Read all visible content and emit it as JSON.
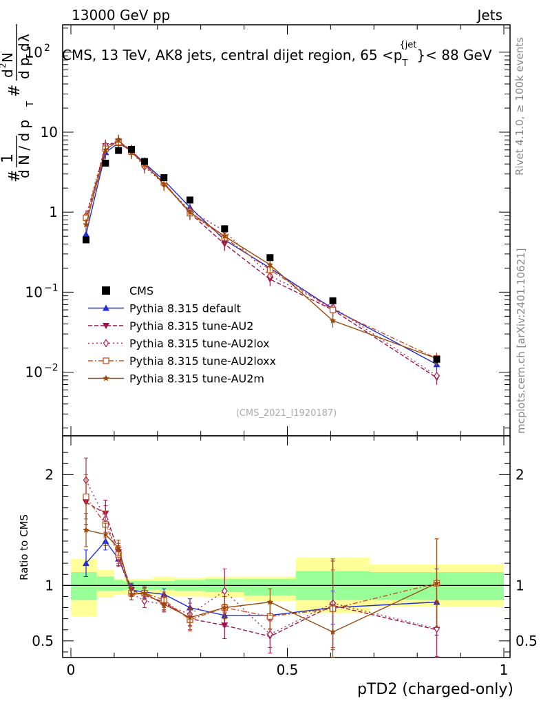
{
  "header": {
    "left": "13000 GeV pp",
    "right": "Jets"
  },
  "side": {
    "rivet": "Rivet 4.1.0, ≥ 100k events",
    "mcplots": "mcplots.cern.ch [arXiv:2401.10621]"
  },
  "chart_data": {
    "type": "scatter",
    "title": "CMS, 13 TeV, AK8 jets, central dijet region, 65 <p_T^{jet}< 88 GeV",
    "title_parts": {
      "main": "CMS, 13 TeV, AK8 jets, central dijet region, 65 <p",
      "sub": "T",
      "sup": "{jet",
      "tail": "}< 88 GeV"
    },
    "analysis_tag": "(CMS_2021_I1920187)",
    "xlabel": "pTD2 (charged-only)",
    "xlim": [
      0,
      1
    ],
    "ylabel_main_parts": {
      "a": "#",
      "b": "1",
      "c": "d N / d p",
      "d": "T",
      "e": "#",
      "f": "d",
      "g": "2",
      "h": "N",
      "i": "d p",
      "j": "T",
      "k": "d",
      "l": "λ"
    },
    "ylim_main": [
      0.0016,
      220
    ],
    "ylabel_ratio": "Ratio to CMS",
    "ylim_ratio": [
      0.35,
      2.35
    ],
    "x_ticks": [
      {
        "v": 0,
        "label": "0"
      },
      {
        "v": 0.5,
        "label": "0.5"
      },
      {
        "v": 1,
        "label": "1"
      }
    ],
    "y_ticks_main": [
      {
        "v": 0.01,
        "label": "10",
        "exp": "−2"
      },
      {
        "v": 0.1,
        "label": "10",
        "exp": "−1"
      },
      {
        "v": 1,
        "label": "1",
        "exp": ""
      },
      {
        "v": 10,
        "label": "10",
        "exp": ""
      },
      {
        "v": 100,
        "label": "10",
        "exp": "2"
      }
    ],
    "y_ticks_ratio": [
      {
        "v": 0.5,
        "label": "0.5"
      },
      {
        "v": 1,
        "label": "1"
      },
      {
        "v": 2,
        "label": "2"
      }
    ],
    "bin_edges": [
      0,
      0.06,
      0.1,
      0.12,
      0.16,
      0.19,
      0.24,
      0.31,
      0.4,
      0.52,
      0.69,
      1.0
    ],
    "x": [
      0.035,
      0.08,
      0.11,
      0.14,
      0.17,
      0.215,
      0.275,
      0.355,
      0.46,
      0.605,
      0.845
    ],
    "cms": {
      "name": "CMS",
      "values": [
        0.45,
        4.1,
        5.9,
        6.1,
        4.3,
        2.7,
        1.42,
        0.62,
        0.27,
        0.078,
        0.0145
      ]
    },
    "ratio_bands": {
      "stat_low": [
        0.87,
        0.95,
        0.95,
        0.96,
        0.96,
        0.96,
        0.95,
        0.94,
        0.91,
        0.87,
        0.87
      ],
      "stat_high": [
        1.12,
        1.08,
        1.05,
        1.04,
        1.04,
        1.04,
        1.05,
        1.06,
        1.06,
        1.13,
        1.12
      ],
      "total_low": [
        0.72,
        0.89,
        0.92,
        0.92,
        0.92,
        0.91,
        0.9,
        0.89,
        0.86,
        0.75,
        0.81
      ],
      "total_high": [
        1.24,
        1.14,
        1.06,
        1.06,
        1.06,
        1.08,
        1.07,
        1.08,
        1.08,
        1.25,
        1.19
      ]
    },
    "series": [
      {
        "name": "Pythia 8.315 default",
        "color": "#1f2ed8",
        "marker": "triangle-up",
        "dash": "",
        "values": [
          0.53,
          5.6,
          7.3,
          5.8,
          4.1,
          2.5,
          1.15,
          0.45,
          0.2,
          0.062,
          0.0125
        ],
        "ratio": [
          1.2,
          1.4,
          1.24,
          0.96,
          0.94,
          0.92,
          0.8,
          0.73,
          0.73,
          0.8,
          0.85
        ],
        "ratio_err": [
          0.12,
          0.08,
          0.06,
          0.05,
          0.05,
          0.05,
          0.08,
          0.1,
          0.12,
          0.15,
          0.3
        ]
      },
      {
        "name": "Pythia 8.315 tune-AU2",
        "color": "#a0104a",
        "marker": "triangle-down",
        "dash": "6,3",
        "values": [
          0.8,
          6.7,
          7.7,
          5.9,
          3.9,
          2.3,
          0.97,
          0.4,
          0.145,
          0.06,
          0.0085
        ],
        "ratio": [
          1.75,
          1.65,
          1.3,
          0.96,
          0.91,
          0.85,
          0.7,
          0.64,
          0.54,
          0.82,
          0.6
        ],
        "ratio_err": [
          0.2,
          0.12,
          0.08,
          0.06,
          0.06,
          0.07,
          0.1,
          0.12,
          0.15,
          0.4,
          0.25
        ]
      },
      {
        "name": "Pythia 8.315 tune-AU2lox",
        "color": "#a8285a",
        "marker": "diamond",
        "dash": "2,4",
        "values": [
          0.9,
          6.8,
          7.8,
          5.7,
          3.7,
          2.25,
          1.05,
          0.58,
          0.16,
          0.065,
          0.009
        ],
        "ratio": [
          1.95,
          1.6,
          1.25,
          0.93,
          0.86,
          0.83,
          0.74,
          0.95,
          0.56,
          0.84,
          0.61
        ],
        "ratio_err": [
          0.2,
          0.12,
          0.08,
          0.06,
          0.06,
          0.07,
          0.1,
          0.2,
          0.12,
          0.4,
          0.25
        ]
      },
      {
        "name": "Pythia 8.315 tune-AU2loxx",
        "color": "#c8501e",
        "marker": "square-open",
        "dash": "7,3,2,3",
        "values": [
          0.85,
          6.2,
          7.5,
          5.7,
          4.0,
          2.35,
          0.97,
          0.48,
          0.19,
          0.06,
          0.0148
        ],
        "ratio": [
          1.8,
          1.55,
          1.28,
          0.93,
          0.93,
          0.87,
          0.69,
          0.8,
          0.72,
          0.79,
          1.02
        ],
        "ratio_err": [
          0.2,
          0.12,
          0.08,
          0.06,
          0.06,
          0.07,
          0.1,
          0.1,
          0.12,
          0.35,
          0.4
        ]
      },
      {
        "name": "Pythia 8.315 tune-AU2m",
        "color": "#9a4a0a",
        "marker": "star",
        "dash": "",
        "values": [
          0.7,
          6.0,
          7.9,
          5.6,
          4.0,
          2.25,
          1.0,
          0.5,
          0.22,
          0.044,
          0.0148
        ],
        "ratio": [
          1.5,
          1.46,
          1.34,
          0.92,
          0.93,
          0.83,
          0.71,
          0.8,
          0.85,
          0.58,
          1.02
        ],
        "ratio_err": [
          0.15,
          0.1,
          0.07,
          0.05,
          0.05,
          0.06,
          0.08,
          0.1,
          0.12,
          0.25,
          0.4
        ]
      }
    ]
  }
}
